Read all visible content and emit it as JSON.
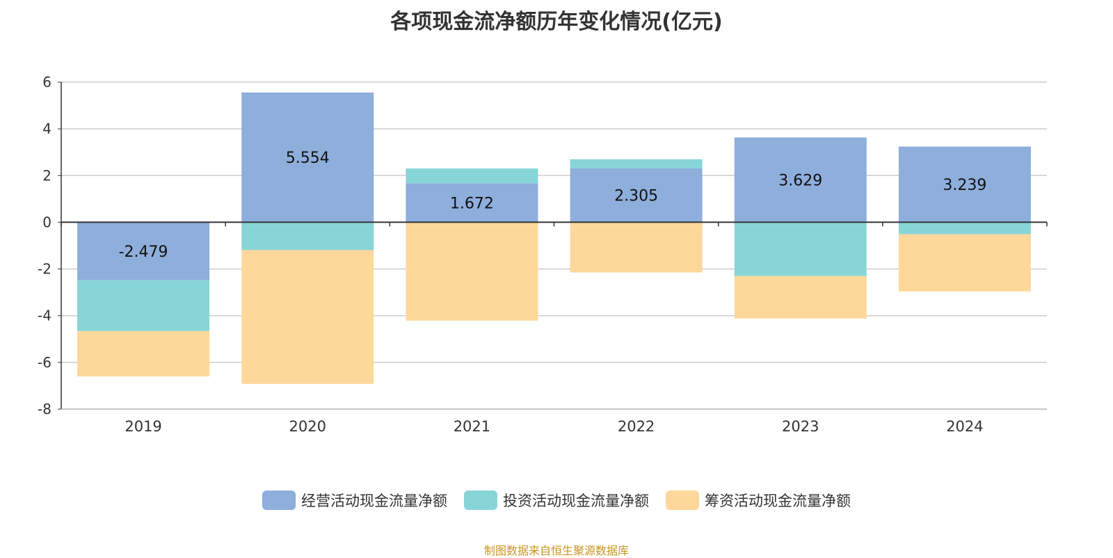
{
  "chart_data": {
    "type": "bar",
    "stacked": true,
    "title": "各项现金流净额历年变化情况(亿元)",
    "categories": [
      "2019",
      "2020",
      "2021",
      "2022",
      "2023",
      "2024"
    ],
    "series": [
      {
        "name": "经营活动现金流量净额",
        "color": "#8eaedb",
        "values": [
          -2.479,
          5.554,
          1.672,
          2.305,
          3.629,
          3.239
        ],
        "labels": [
          "-2.479",
          "5.554",
          "1.672",
          "2.305",
          "3.629",
          "3.239"
        ]
      },
      {
        "name": "投资活动现金流量净额",
        "color": "#88d5d8",
        "values": [
          -2.18,
          -1.19,
          0.63,
          0.39,
          -2.3,
          -0.51
        ]
      },
      {
        "name": "筹资活动现金流量净额",
        "color": "#fed89b",
        "values": [
          -1.94,
          -5.73,
          -4.21,
          -2.15,
          -1.82,
          -2.45
        ]
      }
    ],
    "ylim": [
      -8,
      6
    ],
    "yticks": [
      "6",
      "4",
      "2",
      "0",
      "-2",
      "-4",
      "-6",
      "-8"
    ],
    "grid": true,
    "legend_position": "bottom"
  },
  "source": "制图数据来自恒生聚源数据库"
}
